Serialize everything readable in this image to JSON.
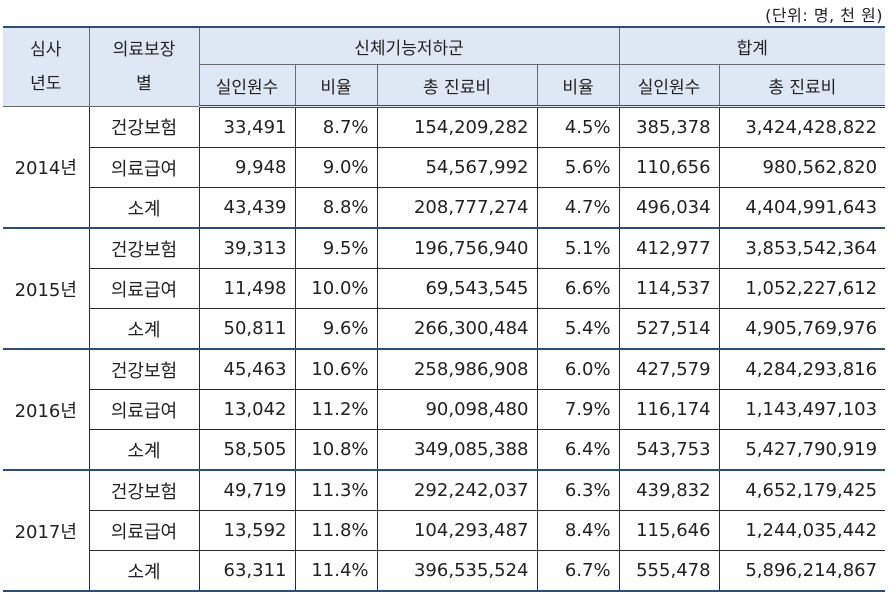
{
  "unit_note": "(단위: 명, 천 원)",
  "header": {
    "year_col": "심사\n년도",
    "type_col": "의료보장\n별",
    "group1": "신체기능저하군",
    "group2": "합계",
    "patients": "실인원수",
    "ratio": "비율",
    "cost": "총 진료비",
    "ratio2": "비율",
    "patients2": "실인원수",
    "cost2": "총 진료비"
  },
  "years": [
    {
      "year": "2014년",
      "rows": [
        {
          "type": "건강보험",
          "patients": "33,491",
          "ratio": "8.7%",
          "cost": "154,209,282",
          "cost_ratio": "4.5%",
          "total_patients": "385,378",
          "total_cost": "3,424,428,822"
        },
        {
          "type": "의료급여",
          "patients": "9,948",
          "ratio": "9.0%",
          "cost": "54,567,992",
          "cost_ratio": "5.6%",
          "total_patients": "110,656",
          "total_cost": "980,562,820"
        },
        {
          "type": "소계",
          "patients": "43,439",
          "ratio": "8.8%",
          "cost": "208,777,274",
          "cost_ratio": "4.7%",
          "total_patients": "496,034",
          "total_cost": "4,404,991,643"
        }
      ]
    },
    {
      "year": "2015년",
      "rows": [
        {
          "type": "건강보험",
          "patients": "39,313",
          "ratio": "9.5%",
          "cost": "196,756,940",
          "cost_ratio": "5.1%",
          "total_patients": "412,977",
          "total_cost": "3,853,542,364"
        },
        {
          "type": "의료급여",
          "patients": "11,498",
          "ratio": "10.0%",
          "cost": "69,543,545",
          "cost_ratio": "6.6%",
          "total_patients": "114,537",
          "total_cost": "1,052,227,612"
        },
        {
          "type": "소계",
          "patients": "50,811",
          "ratio": "9.6%",
          "cost": "266,300,484",
          "cost_ratio": "5.4%",
          "total_patients": "527,514",
          "total_cost": "4,905,769,976"
        }
      ]
    },
    {
      "year": "2016년",
      "rows": [
        {
          "type": "건강보험",
          "patients": "45,463",
          "ratio": "10.6%",
          "cost": "258,986,908",
          "cost_ratio": "6.0%",
          "total_patients": "427,579",
          "total_cost": "4,284,293,816"
        },
        {
          "type": "의료급여",
          "patients": "13,042",
          "ratio": "11.2%",
          "cost": "90,098,480",
          "cost_ratio": "7.9%",
          "total_patients": "116,174",
          "total_cost": "1,143,497,103"
        },
        {
          "type": "소계",
          "patients": "58,505",
          "ratio": "10.8%",
          "cost": "349,085,388",
          "cost_ratio": "6.4%",
          "total_patients": "543,753",
          "total_cost": "5,427,790,919"
        }
      ]
    },
    {
      "year": "2017년",
      "rows": [
        {
          "type": "건강보험",
          "patients": "49,719",
          "ratio": "11.3%",
          "cost": "292,242,037",
          "cost_ratio": "6.3%",
          "total_patients": "439,832",
          "total_cost": "4,652,179,425"
        },
        {
          "type": "의료급여",
          "patients": "13,592",
          "ratio": "11.8%",
          "cost": "104,293,487",
          "cost_ratio": "8.4%",
          "total_patients": "115,646",
          "total_cost": "1,244,035,442"
        },
        {
          "type": "소계",
          "patients": "63,311",
          "ratio": "11.4%",
          "cost": "396,535,524",
          "cost_ratio": "6.7%",
          "total_patients": "555,478",
          "total_cost": "5,896,214,867"
        }
      ]
    }
  ]
}
